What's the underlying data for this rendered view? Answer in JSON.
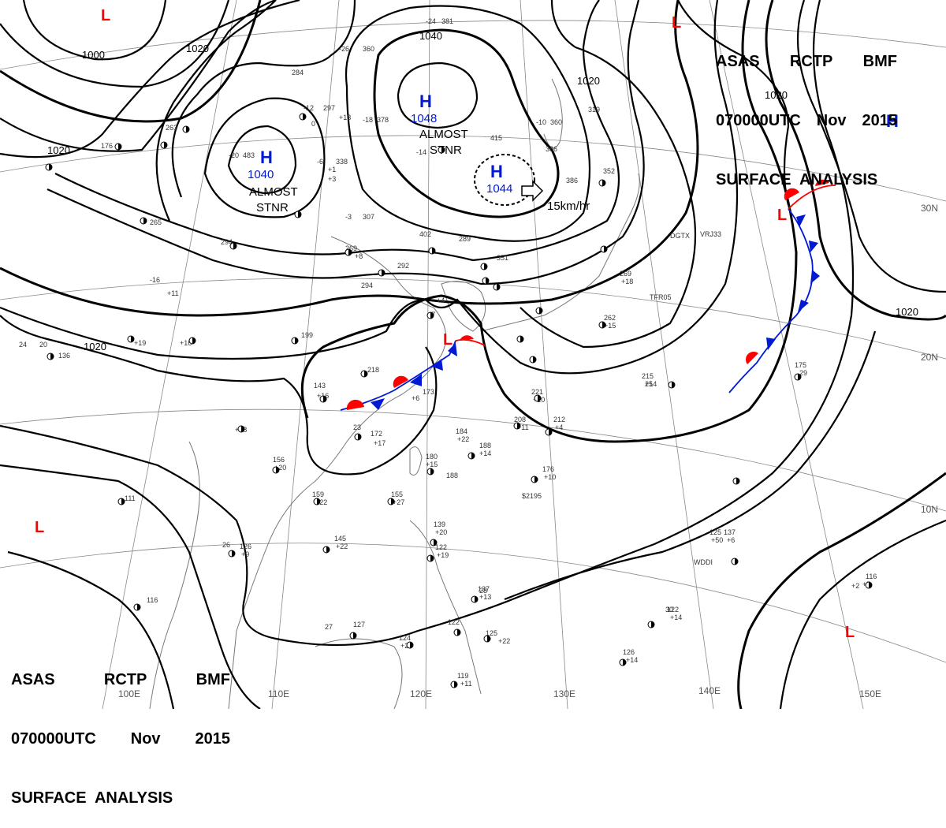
{
  "title": {
    "line1": [
      "ASAS",
      "RCTP",
      "BMF"
    ],
    "line2": [
      "070000UTC",
      "Nov",
      "2015"
    ],
    "line3": "SURFACE  ANALYSIS"
  },
  "colors": {
    "isobar": "#000000",
    "high": "#0019d4",
    "low": "#ff0000",
    "cold_front": "#0019d4",
    "warm_front": "#ff0000",
    "grid": "#888888",
    "coast": "#777777"
  },
  "pressure_centers": [
    {
      "id": "h1",
      "type": "H",
      "value": "1048",
      "note": ""
    },
    {
      "id": "h2",
      "type": "H",
      "value": "1040",
      "note": "ALMOST STNR"
    },
    {
      "id": "h3",
      "type": "H",
      "value": "1044",
      "note": "15km/hr"
    },
    {
      "id": "h4",
      "type": "H",
      "value": "",
      "note": ""
    },
    {
      "id": "l1",
      "type": "L",
      "value": "",
      "note": ""
    },
    {
      "id": "l2",
      "type": "L",
      "value": "",
      "note": ""
    },
    {
      "id": "l3",
      "type": "L",
      "value": "",
      "note": ""
    },
    {
      "id": "l4",
      "type": "L",
      "value": "",
      "note": ""
    },
    {
      "id": "l5",
      "type": "L",
      "value": "",
      "note": ""
    },
    {
      "id": "l6",
      "type": "L",
      "value": "",
      "note": ""
    }
  ],
  "annotations": {
    "almost_stnr_1": "ALMOST",
    "almost_stnr_2": "STNR",
    "speed": "15km/hr"
  },
  "isobar_labels": [
    "1000",
    "1020",
    "1020",
    "1040",
    "1020",
    "1020",
    "1020",
    "1020"
  ],
  "longitude_labels": [
    "100E",
    "110E",
    "120E",
    "130E",
    "140E",
    "150E"
  ],
  "latitude_labels": [
    "30N",
    "20N",
    "10N"
  ],
  "station_labels": [
    "DGTX",
    "VRJ33",
    "TFR05",
    "WDDI",
    "$2195"
  ],
  "station_values": [
    "-24",
    "381",
    "-26",
    "360",
    "284",
    "-12",
    "297",
    "0",
    "263",
    "-18",
    "378",
    "-10",
    "360",
    "415",
    "386",
    "319",
    "352",
    "-20",
    "483",
    "338",
    "-6",
    "-14",
    "386",
    "176",
    "-3",
    "307",
    "265",
    "294",
    "402",
    "289",
    "269",
    "292",
    "351",
    "294",
    "199",
    "-16",
    "+11",
    "+19",
    "+16",
    "20",
    "136",
    "218",
    "173",
    "143",
    "+16",
    "+18",
    "23",
    "172",
    "+17",
    "184",
    "+22",
    "188",
    "+14",
    "180",
    "+15",
    "188",
    "221",
    "+10",
    "208",
    "+11",
    "212",
    "+4",
    "+7",
    "262",
    "+15",
    "269",
    "+18",
    "215",
    "+14",
    "25",
    "29",
    "175",
    "156",
    "+20",
    "159",
    "+22",
    "155",
    "+27",
    "176",
    "+10",
    "145",
    "+22",
    "126",
    "+9",
    "125",
    "+50",
    "137",
    "+6",
    "139",
    "+20",
    "122",
    "+19",
    "137",
    "+13",
    "116",
    "+5",
    "122",
    "+14",
    "127",
    "124",
    "+25",
    "122",
    "125",
    "+22",
    "126",
    "+14",
    "119",
    "+11",
    "111",
    "116",
    "24",
    "26",
    "27",
    "28",
    "30",
    "+2",
    "+1",
    "+3",
    "+13",
    "+6",
    "+8",
    "+4"
  ]
}
